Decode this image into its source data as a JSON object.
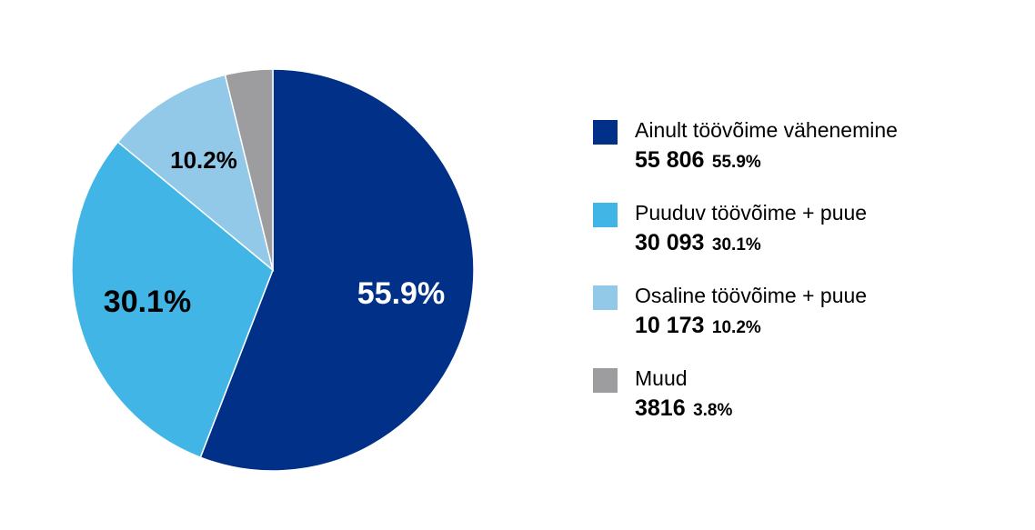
{
  "chart_data": {
    "type": "pie",
    "title": "",
    "legend_position": "right",
    "slices": [
      {
        "name": "Ainult töövõime vähenemine",
        "value": 55806,
        "count_label": "55 806",
        "percent": 55.9,
        "percent_label": "55.9%",
        "color": "#003087"
      },
      {
        "name": "Puuduv töövõime + puue",
        "value": 30093,
        "count_label": "30 093",
        "percent": 30.1,
        "percent_label": "30.1%",
        "color": "#41b6e6"
      },
      {
        "name": "Osaline töövõime + puue",
        "value": 10173,
        "count_label": "10 173",
        "percent": 10.2,
        "percent_label": "10.2%",
        "color": "#92c8e8"
      },
      {
        "name": "Muud",
        "value": 3816,
        "count_label": "3816",
        "percent": 3.8,
        "percent_label": "3.8%",
        "color": "#9d9d9f"
      }
    ]
  }
}
